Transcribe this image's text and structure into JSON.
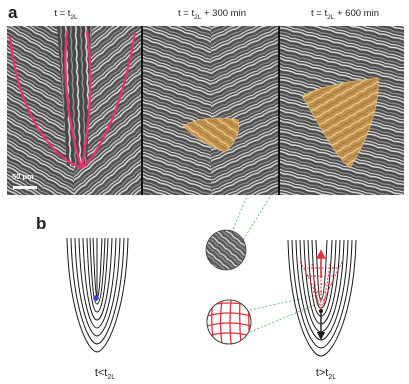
{
  "figure": {
    "panel_a_label": "a",
    "panel_b_label": "b",
    "time_labels": [
      {
        "prefix": "t = t",
        "sub": "2L",
        "suffix": ""
      },
      {
        "prefix": "t = t",
        "sub": "2L",
        "suffix": " + 300 min"
      },
      {
        "prefix": "t = t",
        "sub": "2L",
        "suffix": " + 600 min"
      }
    ],
    "scale_bar_label": "50 μm",
    "bottom_labels": [
      {
        "prefix": "t<t",
        "sub": "2L"
      },
      {
        "prefix": "t>t",
        "sub": "2L"
      }
    ],
    "colors": {
      "red_line": "#e8336d",
      "region_fill": "#d9a650",
      "blue_dot": "#3b3bd6",
      "green_link": "#5cc25c",
      "red_grid": "#e0323c"
    }
  }
}
